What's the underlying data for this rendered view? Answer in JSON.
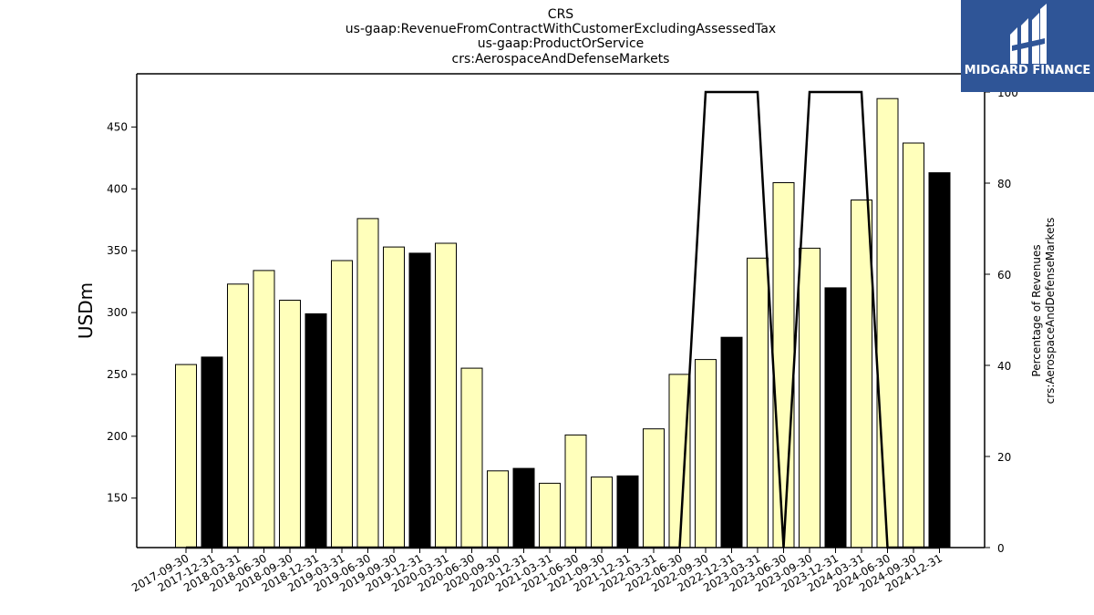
{
  "chart_data": {
    "type": "bar",
    "title_lines": [
      "CRS",
      "us-gaap:RevenueFromContractWithCustomerExcludingAssessedTax",
      "us-gaap:ProductOrService",
      "crs:AerospaceAndDefenseMarkets"
    ],
    "ylabel": "USDm",
    "y2label_lines": [
      "Percentage of Revenues",
      "crs:AerospaceAndDefenseMarkets"
    ],
    "ylim": [
      110,
      493
    ],
    "y2lim": [
      0,
      104
    ],
    "yticks": [
      150,
      200,
      250,
      300,
      350,
      400,
      450
    ],
    "y2ticks": [
      0,
      20,
      40,
      60,
      80,
      100
    ],
    "categories": [
      "2017-09-30",
      "2017-12-31",
      "2018-03-31",
      "2018-06-30",
      "2018-09-30",
      "2018-12-31",
      "2019-03-31",
      "2019-06-30",
      "2019-09-30",
      "2019-12-31",
      "2020-03-31",
      "2020-06-30",
      "2020-09-30",
      "2020-12-31",
      "2021-03-31",
      "2021-06-30",
      "2021-09-30",
      "2021-12-31",
      "2022-03-31",
      "2022-06-30",
      "2022-09-30",
      "2022-12-31",
      "2023-03-31",
      "2023-06-30",
      "2023-09-30",
      "2023-12-31",
      "2024-03-31",
      "2024-06-30",
      "2024-09-30",
      "2024-12-31"
    ],
    "series": [
      {
        "values": [
          258,
          264,
          323,
          334,
          310,
          299,
          342,
          376,
          353,
          348,
          356,
          255,
          172,
          174,
          162,
          201,
          167,
          168,
          206,
          250,
          262,
          280,
          344,
          405,
          352,
          320,
          391,
          473,
          437,
          413
        ]
      },
      {
        "values": [
          0,
          0,
          0,
          0,
          0,
          0,
          0,
          0,
          0,
          0,
          0,
          0,
          0,
          0,
          0,
          0,
          0,
          0,
          0,
          0,
          100,
          100,
          100,
          0,
          100,
          100,
          100,
          0,
          0,
          0
        ]
      }
    ],
    "bar_colors": [
      "#ffffbb",
      "#000000",
      "#ffffbb",
      "#ffffbb",
      "#ffffbb",
      "#000000",
      "#ffffbb",
      "#ffffbb",
      "#ffffbb",
      "#000000",
      "#ffffbb",
      "#ffffbb",
      "#ffffbb",
      "#000000",
      "#ffffbb",
      "#ffffbb",
      "#ffffbb",
      "#000000",
      "#ffffbb",
      "#ffffbb",
      "#ffffbb",
      "#000000",
      "#ffffbb",
      "#ffffbb",
      "#ffffbb",
      "#000000",
      "#ffffbb",
      "#ffffbb",
      "#ffffbb",
      "#000000"
    ],
    "line_color": "#000000",
    "grid": false
  },
  "logo": {
    "text": "MIDGARD FINANCE",
    "background": "#2f5597"
  }
}
